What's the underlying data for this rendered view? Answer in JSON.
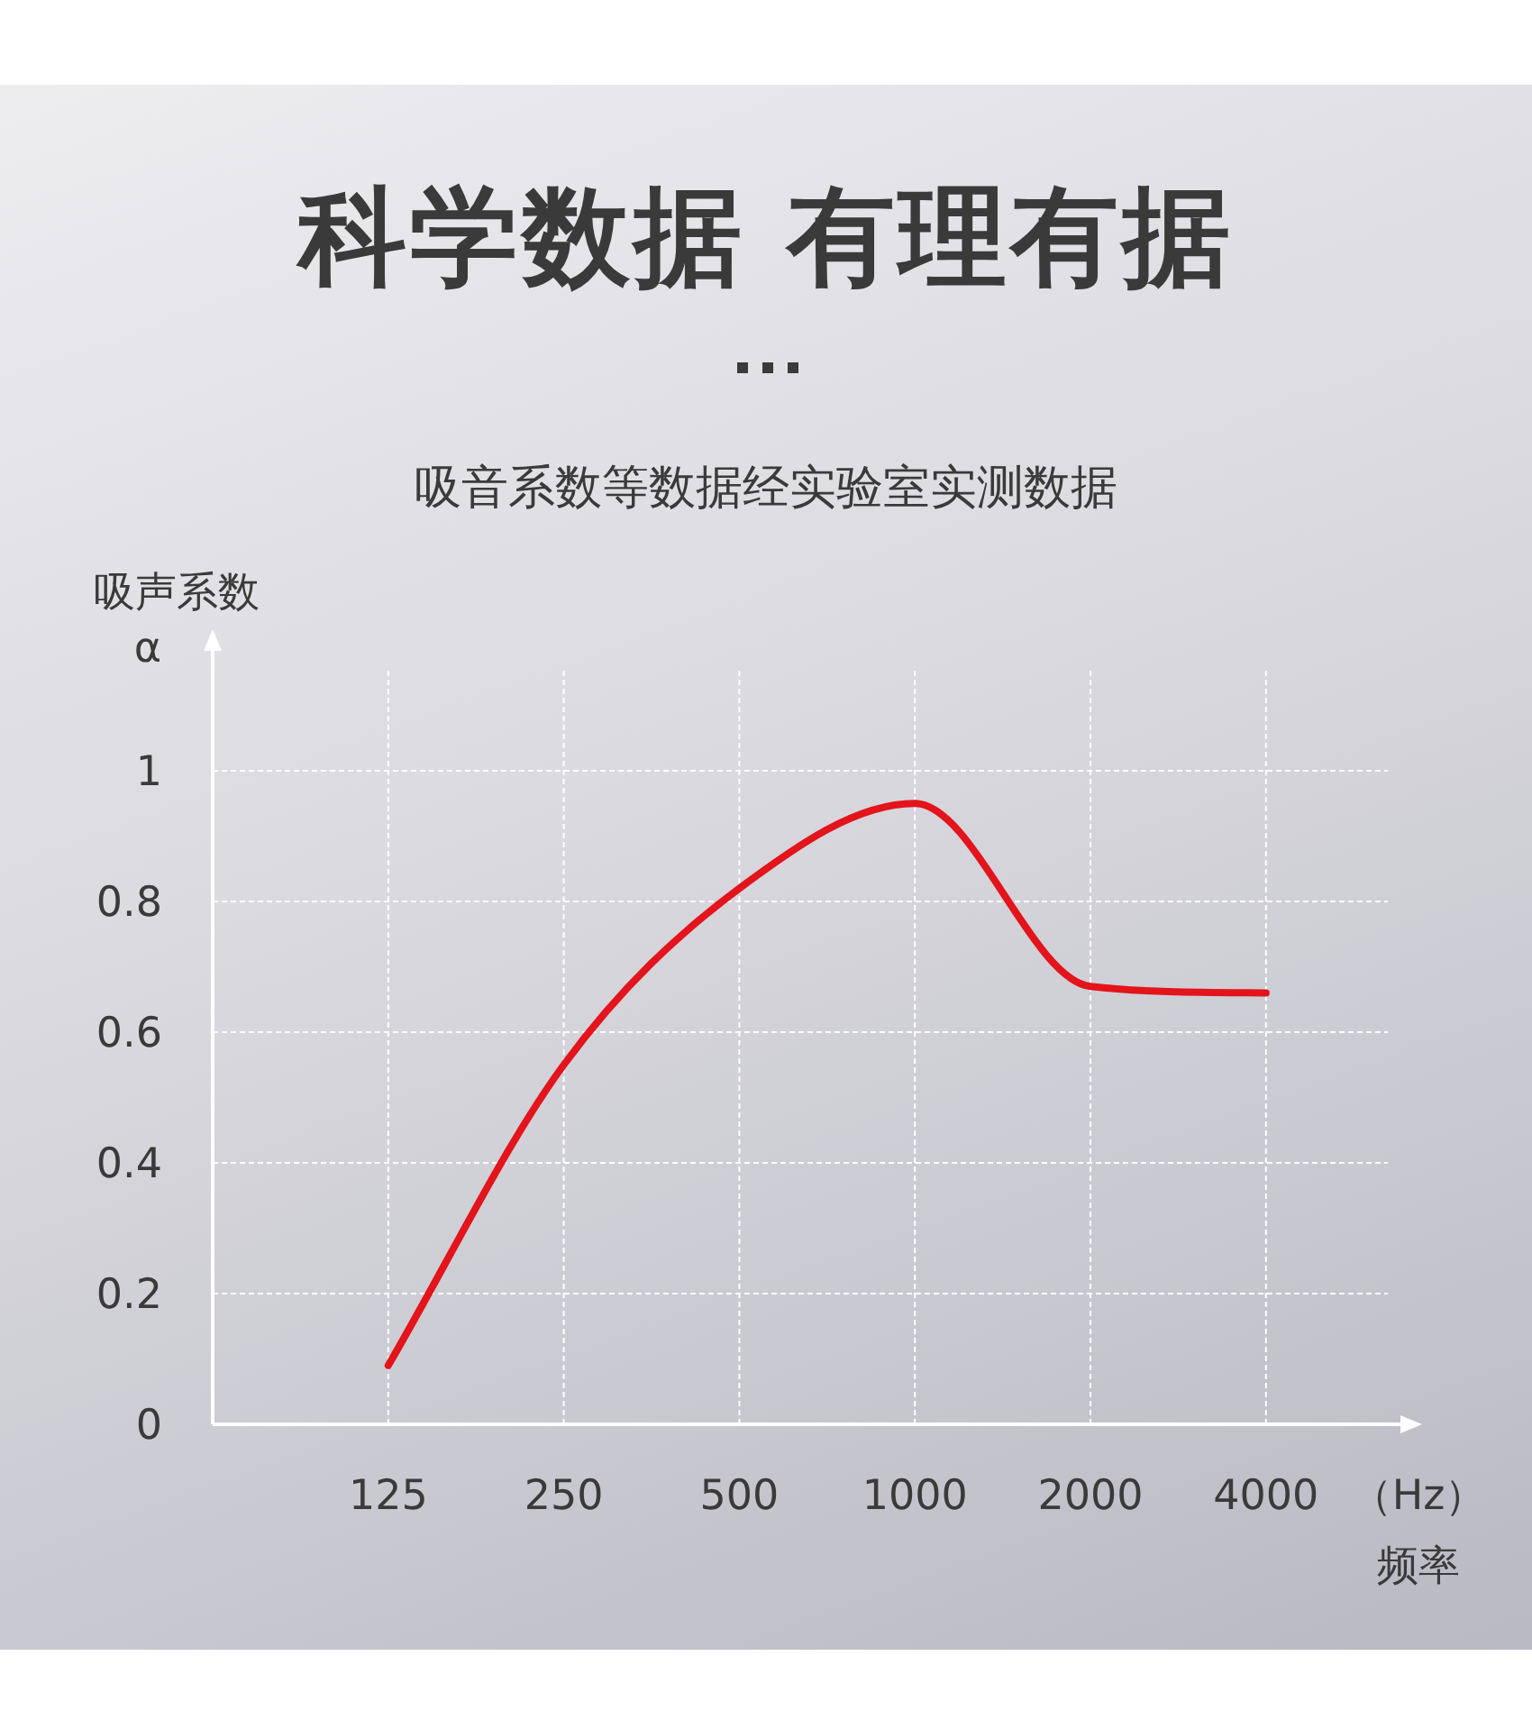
{
  "chart_data": {
    "type": "line",
    "title": "科学数据 有理有据",
    "subtitle": "吸音系数等数据经实验室实测数据",
    "xlabel": "频率",
    "ylabel": "吸声系数\nα",
    "annotations": [
      "（Hz）"
    ],
    "categories": [
      "125",
      "250",
      "500",
      "1000",
      "2000",
      "4000"
    ],
    "series": [
      {
        "color": "#e3141c",
        "values": [
          0.09,
          0.55,
          0.82,
          0.95,
          0.67,
          0.66
        ]
      }
    ],
    "ylim": [
      0,
      1.2
    ],
    "yticks": [
      0,
      0.2,
      0.4,
      0.6,
      0.8,
      1
    ],
    "grid": true,
    "marker": "none",
    "line_style": "solid"
  }
}
